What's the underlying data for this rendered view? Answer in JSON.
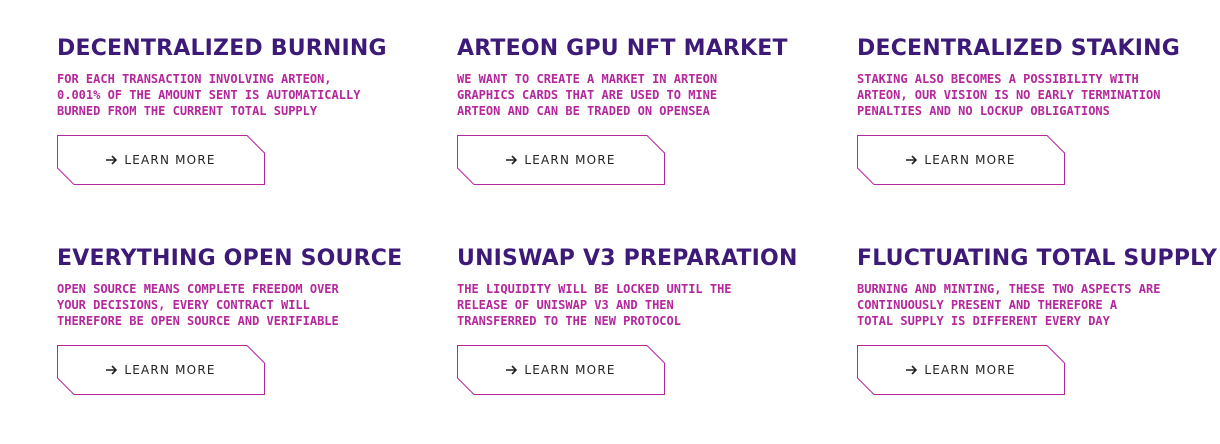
{
  "features": [
    {
      "title": "DECENTRALIZED BURNING",
      "description": "FOR EACH TRANSACTION INVOLVING ARTEON,\n0.001% OF THE AMOUNT SENT IS AUTOMATICALLY\nBURNED FROM THE CURRENT TOTAL SUPPLY",
      "button_label": "LEARN MORE"
    },
    {
      "title": "ARTEON GPU NFT MARKET",
      "description": "WE WANT TO CREATE A MARKET IN ARTEON\nGRAPHICS CARDS THAT ARE USED TO MINE\nARTEON AND CAN BE TRADED ON OPENSEA",
      "button_label": "LEARN MORE"
    },
    {
      "title": "DECENTRALIZED STAKING",
      "description": "STAKING ALSO BECOMES A POSSIBILITY WITH\nARTEON, OUR VISION IS NO EARLY TERMINATION\nPENALTIES AND NO LOCKUP OBLIGATIONS",
      "button_label": "LEARN MORE"
    },
    {
      "title": "EVERYTHING OPEN SOURCE",
      "description": "OPEN SOURCE MEANS COMPLETE FREEDOM OVER\nYOUR DECISIONS, EVERY CONTRACT WILL\nTHEREFORE BE OPEN SOURCE AND VERIFIABLE",
      "button_label": "LEARN MORE"
    },
    {
      "title": "UNISWAP V3 PREPARATION",
      "description": "THE LIQUIDITY WILL BE LOCKED UNTIL THE\nRELEASE OF UNISWAP V3 AND THEN\nTRANSFERRED TO THE NEW PROTOCOL",
      "button_label": "LEARN MORE"
    },
    {
      "title": "FLUCTUATING TOTAL SUPPLY",
      "description": "BURNING AND MINTING, THESE TWO ASPECTS ARE\nCONTINUOUSLY PRESENT AND THEREFORE A\nTOTAL SUPPLY IS DIFFERENT EVERY DAY",
      "button_label": "LEARN MORE"
    }
  ],
  "colors": {
    "title": "#3d1a78",
    "description": "#b5279c",
    "button_border": "#b5279c",
    "button_text": "#222222"
  },
  "icons": {
    "button_icon": "arrow-right-icon"
  }
}
